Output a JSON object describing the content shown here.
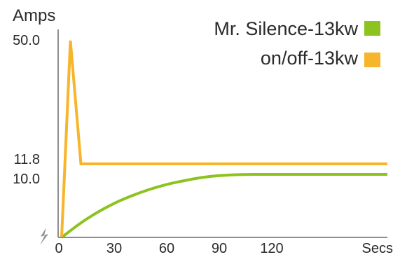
{
  "chart_data": {
    "type": "line",
    "ylabel": "Amps",
    "xlabel": "Secs",
    "y_ticks": [
      "50.0",
      "11.8",
      "10.0"
    ],
    "y_tick_values": [
      50.0,
      11.8,
      10.0
    ],
    "x_ticks": [
      "0",
      "30",
      "60",
      "90",
      "120"
    ],
    "x_tick_values": [
      0,
      30,
      60,
      90,
      120
    ],
    "xlim": [
      0,
      186
    ],
    "ylim": [
      0,
      50
    ],
    "grid": false,
    "legend_position": "top-right",
    "series": [
      {
        "name": "Mr. Silence-13kw",
        "color": "#8cc31f",
        "x": [
          0,
          10,
          20,
          30,
          40,
          50,
          60,
          70,
          80,
          90,
          100,
          110,
          120,
          186
        ],
        "y": [
          0,
          2.1,
          3.9,
          5.4,
          6.6,
          7.6,
          8.4,
          9.0,
          9.5,
          9.8,
          9.95,
          10.0,
          10.0,
          10.0
        ]
      },
      {
        "name": "on/off-13kw",
        "color": "#f7b52b",
        "x": [
          0,
          5,
          11,
          186
        ],
        "y": [
          0,
          50.0,
          11.8,
          11.8
        ]
      }
    ]
  }
}
